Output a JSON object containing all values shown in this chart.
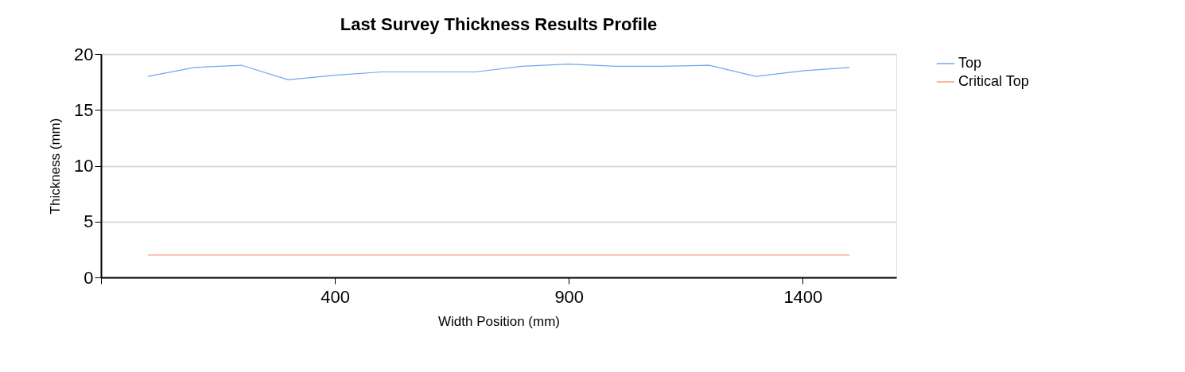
{
  "chart_data": {
    "type": "line",
    "title": "Last Survey Thickness Results Profile",
    "xlabel": "Width Position (mm)",
    "ylabel": "Thickness (mm)",
    "x": [
      0,
      100,
      200,
      300,
      400,
      500,
      600,
      700,
      800,
      900,
      1000,
      1100,
      1200,
      1300,
      1400,
      1500
    ],
    "series": [
      {
        "name": "Top",
        "color": "#6fa8ee",
        "values": [
          18.0,
          18.8,
          19.0,
          17.7,
          18.1,
          18.4,
          18.4,
          18.4,
          18.9,
          19.1,
          18.9,
          18.9,
          19.0,
          18.0,
          18.5,
          18.8
        ]
      },
      {
        "name": "Critical Top",
        "color": "#f4a080",
        "values": [
          2.0,
          2.0,
          2.0,
          2.0,
          2.0,
          2.0,
          2.0,
          2.0,
          2.0,
          2.0,
          2.0,
          2.0,
          2.0,
          2.0,
          2.0,
          2.0
        ]
      }
    ],
    "xlim": [
      -100,
      1600
    ],
    "xticks": [
      {
        "value": -100,
        "label": null
      },
      400,
      900,
      1400
    ],
    "ylim": [
      0,
      20
    ],
    "yticks": [
      0,
      5,
      10,
      15,
      20
    ],
    "grid": "y",
    "legend": "top right",
    "marker": "none",
    "line_style": "solid"
  }
}
